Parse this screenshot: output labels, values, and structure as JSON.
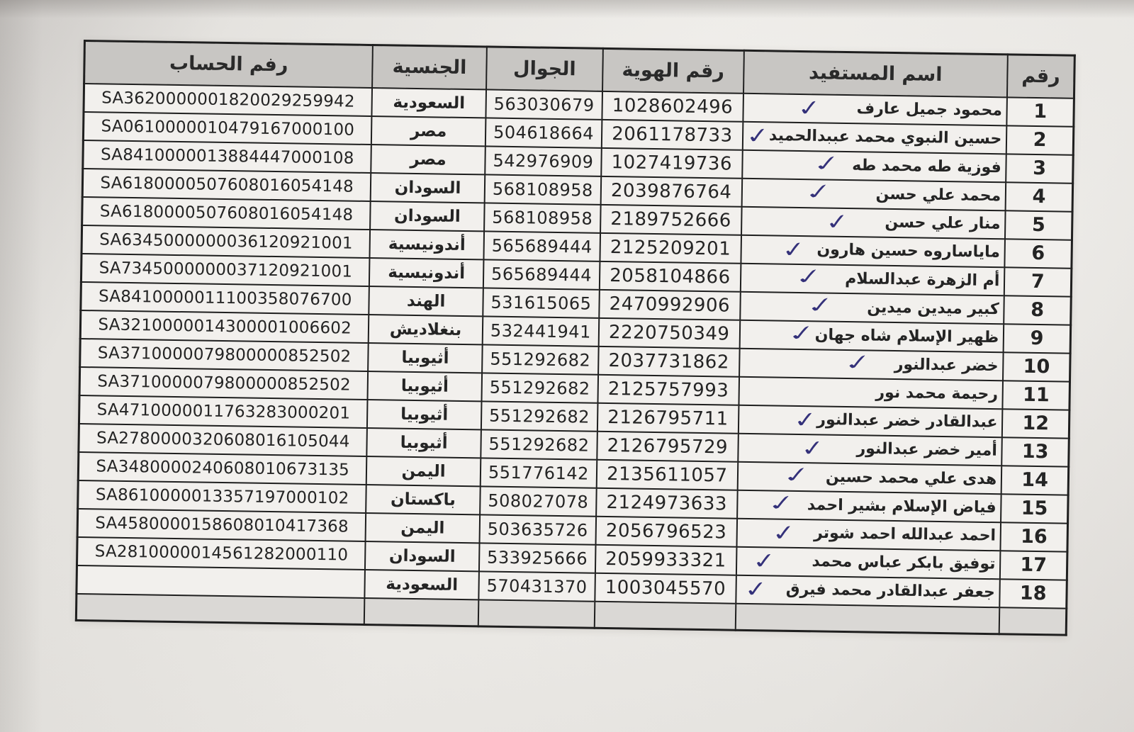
{
  "table": {
    "headers": {
      "num": "رقم",
      "name": "اسم المستفيد",
      "id": "رقم الهوية",
      "mobile": "الجوال",
      "nationality": "الجنسية",
      "account": "رفم الحساب"
    },
    "check_glyph": "✓",
    "rows": [
      {
        "num": "1",
        "name": "محمود جميل عارف",
        "check": true,
        "id": "1028602496",
        "mobile": "563030679",
        "nationality": "السعودية",
        "account": "SA3620000001820029259942"
      },
      {
        "num": "2",
        "name": "حسين النبوي محمد عببدالحميد",
        "check": true,
        "id": "2061178733",
        "mobile": "504618664",
        "nationality": "مصر",
        "account": "SA0610000010479167000100"
      },
      {
        "num": "3",
        "name": "فوزية طه محمد طه",
        "check": true,
        "id": "1027419736",
        "mobile": "542976909",
        "nationality": "مصر",
        "account": "SA8410000013884447000108"
      },
      {
        "num": "4",
        "name": "محمد علي حسن",
        "check": true,
        "id": "2039876764",
        "mobile": "568108958",
        "nationality": "السودان",
        "account": "SA6180000507608016054148"
      },
      {
        "num": "5",
        "name": "منار علي حسن",
        "check": true,
        "id": "2189752666",
        "mobile": "568108958",
        "nationality": "السودان",
        "account": "SA6180000507608016054148"
      },
      {
        "num": "6",
        "name": "ماياساروه حسين هارون",
        "check": true,
        "id": "2125209201",
        "mobile": "565689444",
        "nationality": "أندونيسية",
        "account": "SA6345000000036120921001"
      },
      {
        "num": "7",
        "name": "أم الزهرة عبدالسلام",
        "check": true,
        "id": "2058104866",
        "mobile": "565689444",
        "nationality": "أندونيسية",
        "account": "SA7345000000037120921001"
      },
      {
        "num": "8",
        "name": "كبير ميدين ميدين",
        "check": true,
        "id": "2470992906",
        "mobile": "531615065",
        "nationality": "الهند",
        "account": "SA8410000011100358076700"
      },
      {
        "num": "9",
        "name": "ظهير الإسلام شاه جهان",
        "check": true,
        "id": "2220750349",
        "mobile": "532441941",
        "nationality": "بنغلاديش",
        "account": "SA3210000014300001006602"
      },
      {
        "num": "10",
        "name": "خضر عبدالنور",
        "check": true,
        "id": "2037731862",
        "mobile": "551292682",
        "nationality": "أثيوبيا",
        "account": "SA3710000079800000852502"
      },
      {
        "num": "11",
        "name": "رحيمة محمد نور",
        "check": false,
        "id": "2125757993",
        "mobile": "551292682",
        "nationality": "أثيوبيا",
        "account": "SA3710000079800000852502"
      },
      {
        "num": "12",
        "name": "عبدالقادر خضر عبدالنور",
        "check": true,
        "id": "2126795711",
        "mobile": "551292682",
        "nationality": "أثيوبيا",
        "account": "SA4710000011763283000201"
      },
      {
        "num": "13",
        "name": "أمير خضر عبدالنور",
        "check": true,
        "id": "2126795729",
        "mobile": "551292682",
        "nationality": "أثيوبيا",
        "account": "SA2780000320608016105044"
      },
      {
        "num": "14",
        "name": "هدى علي محمد حسين",
        "check": true,
        "id": "2135611057",
        "mobile": "551776142",
        "nationality": "اليمن",
        "account": "SA3480000240608010673135"
      },
      {
        "num": "15",
        "name": "فياض الإسلام بشير احمد",
        "check": true,
        "id": "2124973633",
        "mobile": "508027078",
        "nationality": "باكستان",
        "account": "SA8610000013357197000102"
      },
      {
        "num": "16",
        "name": "احمد عبدالله احمد شوتر",
        "check": true,
        "id": "2056796523",
        "mobile": "503635726",
        "nationality": "اليمن",
        "account": "SA4580000158608010417368"
      },
      {
        "num": "17",
        "name": "توفيق بابكر عباس محمد",
        "check": true,
        "id": "2059933321",
        "mobile": "533925666",
        "nationality": "السودان",
        "account": "SA2810000014561282000110"
      },
      {
        "num": "18",
        "name": "جعفر عبدالقادر محمد فيرق",
        "check": true,
        "id": "1003045570",
        "mobile": "570431370",
        "nationality": "السعودية",
        "account": ""
      }
    ]
  },
  "colors": {
    "photo_background": "#dcd9d6",
    "paper": "#f0eeea",
    "header_fill": "#c8c6c3",
    "table_ink": "#1f1f1f",
    "check_ink": "#34317a"
  }
}
